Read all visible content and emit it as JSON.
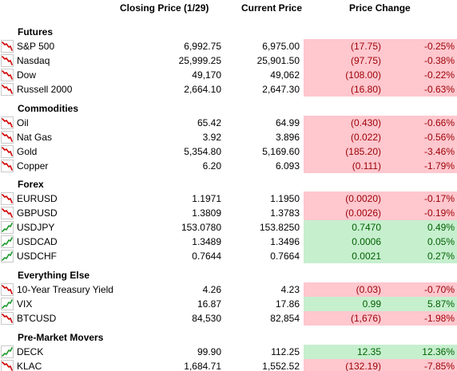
{
  "headers": {
    "closing": "Closing Price (1/29)",
    "current": "Current Price",
    "change": "Price Change"
  },
  "colors": {
    "down_fill": "#ffc7ce",
    "down_text": "#9c0006",
    "up_fill": "#c6efce",
    "up_text": "#006100",
    "down_icon": "#d00000",
    "up_icon": "#1a9a2a"
  },
  "sections": [
    {
      "title": "Futures",
      "rows": [
        {
          "name": "S&P 500",
          "close": "6,992.75",
          "current": "6,975.00",
          "change": "(17.75)",
          "pct": "-0.25%",
          "dir": "down",
          "icon": "trend-down-icon"
        },
        {
          "name": "Nasdaq",
          "close": "25,999.25",
          "current": "25,901.50",
          "change": "(97.75)",
          "pct": "-0.38%",
          "dir": "down",
          "icon": "trend-down-icon"
        },
        {
          "name": "Dow",
          "close": "49,170",
          "current": "49,062",
          "change": "(108.00)",
          "pct": "-0.22%",
          "dir": "down",
          "icon": "trend-down-icon"
        },
        {
          "name": "Russell 2000",
          "close": "2,664.10",
          "current": "2,647.30",
          "change": "(16.80)",
          "pct": "-0.63%",
          "dir": "down",
          "icon": "trend-down-icon"
        }
      ]
    },
    {
      "title": "Commodities",
      "rows": [
        {
          "name": "Oil",
          "close": "65.42",
          "current": "64.99",
          "change": "(0.430)",
          "pct": "-0.66%",
          "dir": "down",
          "icon": "trend-down-icon"
        },
        {
          "name": "Nat Gas",
          "close": "3.92",
          "current": "3.896",
          "change": "(0.022)",
          "pct": "-0.56%",
          "dir": "down",
          "icon": "trend-down-icon"
        },
        {
          "name": "Gold",
          "close": "5,354.80",
          "current": "5,169.60",
          "change": "(185.20)",
          "pct": "-3.46%",
          "dir": "down",
          "icon": "trend-down-icon"
        },
        {
          "name": "Copper",
          "close": "6.20",
          "current": "6.093",
          "change": "(0.111)",
          "pct": "-1.79%",
          "dir": "down",
          "icon": "trend-down-icon"
        }
      ]
    },
    {
      "title": "Forex",
      "rows": [
        {
          "name": "EURUSD",
          "close": "1.1971",
          "current": "1.1950",
          "change": "(0.0020)",
          "pct": "-0.17%",
          "dir": "down",
          "icon": "trend-down-icon"
        },
        {
          "name": "GBPUSD",
          "close": "1.3809",
          "current": "1.3783",
          "change": "(0.0026)",
          "pct": "-0.19%",
          "dir": "down",
          "icon": "trend-down-icon"
        },
        {
          "name": "USDJPY",
          "close": "153.0780",
          "current": "153.8250",
          "change": "0.7470",
          "pct": "0.49%",
          "dir": "up",
          "icon": "trend-up-icon"
        },
        {
          "name": "USDCAD",
          "close": "1.3489",
          "current": "1.3496",
          "change": "0.0006",
          "pct": "0.05%",
          "dir": "up",
          "icon": "trend-up-icon"
        },
        {
          "name": "USDCHF",
          "close": "0.7644",
          "current": "0.7664",
          "change": "0.0021",
          "pct": "0.27%",
          "dir": "up",
          "icon": "trend-up-icon"
        }
      ]
    },
    {
      "title": "Everything Else",
      "rows": [
        {
          "name": "10-Year Treasury Yield",
          "close": "4.26",
          "current": "4.23",
          "change": "(0.03)",
          "pct": "-0.70%",
          "dir": "down",
          "icon": "trend-down-icon"
        },
        {
          "name": "VIX",
          "close": "16.87",
          "current": "17.86",
          "change": "0.99",
          "pct": "5.87%",
          "dir": "up",
          "icon": "trend-up-icon"
        },
        {
          "name": "BTCUSD",
          "close": "84,530",
          "current": "82,854",
          "change": "(1,676)",
          "pct": "-1.98%",
          "dir": "down",
          "icon": "trend-down-icon"
        }
      ]
    },
    {
      "title": "Pre-Market Movers",
      "rows": [
        {
          "name": "DECK",
          "close": "99.90",
          "current": "112.25",
          "change": "12.35",
          "pct": "12.36%",
          "dir": "up",
          "icon": "trend-up-icon"
        },
        {
          "name": "KLAC",
          "close": "1,684.71",
          "current": "1,552.52",
          "change": "(132.19)",
          "pct": "-7.85%",
          "dir": "down",
          "icon": "trend-down-icon"
        }
      ]
    }
  ]
}
